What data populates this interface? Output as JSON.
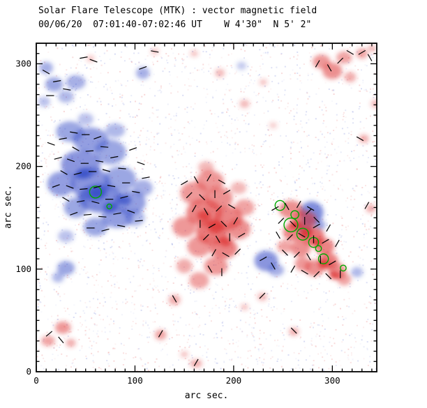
{
  "header": {
    "title_line1": "Solar Flare Telescope (MTK) : vector magnetic field",
    "title_line2": "00/06/20  07:01:40-07:02:46 UT    W 4'30\"  N 5' 2\""
  },
  "chart_data": {
    "type": "heatmap",
    "title": "Solar Flare Telescope (MTK) : vector magnetic field",
    "subtitle": "00/06/20  07:01:40-07:02:46 UT    W 4'30\"  N 5' 2\"",
    "xlabel": "arc sec.",
    "ylabel": "arc sec.",
    "xlim": [
      0,
      345
    ],
    "ylim": [
      0,
      320
    ],
    "xticks": [
      0,
      100,
      200,
      300
    ],
    "yticks": [
      0,
      100,
      200,
      300
    ],
    "minor_tick_step": 10,
    "grid": false,
    "legend": "none",
    "colors": {
      "positive": "#dd3333",
      "negative": "#3a50c8",
      "contour": "#00a800",
      "vector": "#000000",
      "axis": "#000000",
      "background": "#ffffff"
    },
    "polarity_legend": {
      "positive": "red",
      "negative": "blue"
    },
    "negative_blobs": [
      [
        34,
        234,
        14,
        10,
        0.5
      ],
      [
        55,
        226,
        18,
        12,
        0.55
      ],
      [
        75,
        214,
        16,
        12,
        0.5
      ],
      [
        45,
        202,
        20,
        14,
        0.6
      ],
      [
        25,
        183,
        14,
        12,
        0.55
      ],
      [
        55,
        183,
        20,
        16,
        0.6
      ],
      [
        85,
        188,
        16,
        12,
        0.5
      ],
      [
        65,
        169,
        22,
        14,
        0.65
      ],
      [
        95,
        165,
        16,
        12,
        0.55
      ],
      [
        82,
        150,
        16,
        10,
        0.55
      ],
      [
        60,
        141,
        12,
        9,
        0.5
      ],
      [
        108,
        179,
        10,
        8,
        0.45
      ],
      [
        40,
        160,
        12,
        10,
        0.5
      ],
      [
        30,
        132,
        8,
        6,
        0.35
      ],
      [
        100,
        150,
        10,
        8,
        0.4
      ],
      [
        50,
        246,
        8,
        6,
        0.35
      ],
      [
        80,
        235,
        10,
        7,
        0.4
      ],
      [
        62,
        174,
        8,
        6,
        0.85
      ],
      [
        48,
        193,
        7,
        5,
        0.8
      ],
      [
        75,
        160,
        7,
        5,
        0.8
      ],
      [
        90,
        167,
        6,
        5,
        0.75
      ],
      [
        10,
        296,
        7,
        6,
        0.45
      ],
      [
        18,
        280,
        9,
        7,
        0.5
      ],
      [
        40,
        282,
        10,
        7,
        0.45
      ],
      [
        30,
        268,
        8,
        6,
        0.4
      ],
      [
        8,
        263,
        6,
        5,
        0.35
      ],
      [
        108,
        291,
        7,
        6,
        0.45
      ],
      [
        30,
        101,
        9,
        7,
        0.5
      ],
      [
        22,
        92,
        6,
        5,
        0.4
      ],
      [
        233,
        108,
        12,
        10,
        0.6
      ],
      [
        243,
        99,
        8,
        6,
        0.45
      ],
      [
        279,
        155,
        12,
        11,
        0.65
      ],
      [
        272,
        141,
        8,
        7,
        0.55
      ],
      [
        287,
        143,
        6,
        5,
        0.5
      ],
      [
        325,
        97,
        6,
        5,
        0.4
      ],
      [
        208,
        298,
        5,
        4,
        0.3
      ]
    ],
    "positive_blobs": [
      [
        176,
        186,
        14,
        10,
        0.5
      ],
      [
        160,
        174,
        14,
        11,
        0.5
      ],
      [
        185,
        169,
        14,
        11,
        0.55
      ],
      [
        170,
        155,
        18,
        13,
        0.6
      ],
      [
        195,
        150,
        14,
        11,
        0.6
      ],
      [
        150,
        141,
        12,
        10,
        0.5
      ],
      [
        178,
        136,
        16,
        12,
        0.65
      ],
      [
        205,
        139,
        12,
        10,
        0.55
      ],
      [
        165,
        122,
        12,
        10,
        0.5
      ],
      [
        190,
        120,
        14,
        10,
        0.6
      ],
      [
        182,
        103,
        12,
        9,
        0.5
      ],
      [
        165,
        89,
        10,
        8,
        0.45
      ],
      [
        150,
        103,
        8,
        7,
        0.4
      ],
      [
        211,
        160,
        10,
        8,
        0.45
      ],
      [
        182,
        141,
        8,
        6,
        0.8
      ],
      [
        170,
        152,
        7,
        5,
        0.75
      ],
      [
        192,
        127,
        6,
        5,
        0.7
      ],
      [
        172,
        199,
        8,
        6,
        0.35
      ],
      [
        205,
        179,
        8,
        6,
        0.35
      ],
      [
        258,
        158,
        12,
        9,
        0.55
      ],
      [
        272,
        148,
        12,
        9,
        0.6
      ],
      [
        262,
        136,
        12,
        9,
        0.6
      ],
      [
        280,
        132,
        12,
        9,
        0.65
      ],
      [
        292,
        122,
        10,
        8,
        0.6
      ],
      [
        268,
        120,
        10,
        8,
        0.55
      ],
      [
        296,
        108,
        10,
        8,
        0.6
      ],
      [
        282,
        101,
        10,
        8,
        0.55
      ],
      [
        270,
        105,
        8,
        7,
        0.5
      ],
      [
        305,
        98,
        9,
        8,
        0.55
      ],
      [
        312,
        90,
        7,
        6,
        0.45
      ],
      [
        262,
        143,
        6,
        4,
        0.85
      ],
      [
        274,
        135,
        6,
        4,
        0.85
      ],
      [
        284,
        126,
        5,
        4,
        0.8
      ],
      [
        292,
        105,
        6,
        5,
        0.8
      ],
      [
        302,
        94,
        5,
        4,
        0.75
      ],
      [
        252,
        122,
        8,
        6,
        0.45
      ],
      [
        339,
        159,
        5,
        4,
        0.4
      ],
      [
        332,
        227,
        5,
        4,
        0.4
      ],
      [
        344,
        261,
        5,
        4,
        0.35
      ],
      [
        289,
        302,
        9,
        7,
        0.5
      ],
      [
        300,
        293,
        10,
        8,
        0.55
      ],
      [
        312,
        306,
        8,
        6,
        0.45
      ],
      [
        318,
        287,
        6,
        5,
        0.4
      ],
      [
        330,
        310,
        6,
        5,
        0.45
      ],
      [
        340,
        315,
        4,
        3,
        0.4
      ],
      [
        186,
        291,
        5,
        4,
        0.35
      ],
      [
        211,
        261,
        5,
        4,
        0.35
      ],
      [
        160,
        310,
        4,
        3,
        0.3
      ],
      [
        230,
        282,
        4,
        3,
        0.3
      ],
      [
        27,
        43,
        8,
        6,
        0.5
      ],
      [
        12,
        30,
        7,
        5,
        0.45
      ],
      [
        35,
        28,
        5,
        4,
        0.4
      ],
      [
        126,
        36,
        6,
        5,
        0.45
      ],
      [
        140,
        70,
        6,
        5,
        0.4
      ],
      [
        162,
        8,
        6,
        4,
        0.4
      ],
      [
        150,
        17,
        4,
        3,
        0.3
      ],
      [
        261,
        39,
        5,
        4,
        0.4
      ],
      [
        229,
        73,
        5,
        4,
        0.35
      ],
      [
        211,
        63,
        4,
        3,
        0.3
      ],
      [
        240,
        240,
        4,
        3,
        0.25
      ],
      [
        120,
        312,
        4,
        3,
        0.3
      ],
      [
        55,
        305,
        4,
        3,
        0.3
      ]
    ],
    "contours": [
      [
        60,
        175,
        6
      ],
      [
        74,
        161,
        2.5
      ],
      [
        247,
        162,
        5
      ],
      [
        258,
        143,
        7
      ],
      [
        270,
        134,
        6
      ],
      [
        281,
        126,
        5
      ],
      [
        262,
        153,
        4
      ],
      [
        291,
        110,
        5
      ],
      [
        311,
        101,
        3
      ],
      [
        286,
        120,
        3
      ]
    ],
    "vector_length_arcsec": 8,
    "vectors": [
      [
        15,
        222,
        160
      ],
      [
        27,
        227,
        10
      ],
      [
        38,
        233,
        170
      ],
      [
        50,
        231,
        0
      ],
      [
        62,
        228,
        20
      ],
      [
        40,
        217,
        150
      ],
      [
        54,
        215,
        5
      ],
      [
        69,
        219,
        175
      ],
      [
        22,
        208,
        15
      ],
      [
        35,
        206,
        160
      ],
      [
        49,
        203,
        0
      ],
      [
        64,
        205,
        170
      ],
      [
        79,
        209,
        10
      ],
      [
        28,
        194,
        150
      ],
      [
        42,
        193,
        15
      ],
      [
        57,
        195,
        0
      ],
      [
        71,
        196,
        165
      ],
      [
        87,
        198,
        175
      ],
      [
        20,
        181,
        20
      ],
      [
        34,
        180,
        160
      ],
      [
        48,
        178,
        5
      ],
      [
        62,
        180,
        15
      ],
      [
        76,
        181,
        170
      ],
      [
        91,
        184,
        0
      ],
      [
        30,
        168,
        150
      ],
      [
        45,
        166,
        10
      ],
      [
        60,
        165,
        165
      ],
      [
        74,
        168,
        0
      ],
      [
        89,
        170,
        15
      ],
      [
        101,
        175,
        170
      ],
      [
        38,
        154,
        20
      ],
      [
        52,
        153,
        5
      ],
      [
        67,
        151,
        175
      ],
      [
        82,
        154,
        10
      ],
      [
        96,
        156,
        160
      ],
      [
        55,
        140,
        0
      ],
      [
        70,
        138,
        15
      ],
      [
        86,
        142,
        170
      ],
      [
        104,
        147,
        5
      ],
      [
        98,
        217,
        20
      ],
      [
        106,
        203,
        160
      ],
      [
        111,
        189,
        10
      ],
      [
        10,
        292,
        150
      ],
      [
        21,
        283,
        10
      ],
      [
        31,
        275,
        170
      ],
      [
        14,
        269,
        0
      ],
      [
        48,
        306,
        10
      ],
      [
        58,
        303,
        160
      ],
      [
        108,
        296,
        20
      ],
      [
        120,
        312,
        170
      ],
      [
        150,
        184,
        30
      ],
      [
        162,
        187,
        120
      ],
      [
        175,
        189,
        60
      ],
      [
        188,
        185,
        150
      ],
      [
        155,
        172,
        45
      ],
      [
        168,
        170,
        135
      ],
      [
        181,
        173,
        90
      ],
      [
        193,
        175,
        30
      ],
      [
        160,
        159,
        60
      ],
      [
        172,
        156,
        120
      ],
      [
        185,
        159,
        45
      ],
      [
        198,
        161,
        150
      ],
      [
        166,
        144,
        90
      ],
      [
        178,
        142,
        30
      ],
      [
        190,
        144,
        135
      ],
      [
        202,
        147,
        60
      ],
      [
        172,
        131,
        45
      ],
      [
        184,
        129,
        120
      ],
      [
        196,
        131,
        90
      ],
      [
        208,
        133,
        30
      ],
      [
        180,
        116,
        60
      ],
      [
        192,
        114,
        150
      ],
      [
        204,
        117,
        45
      ],
      [
        176,
        100,
        120
      ],
      [
        188,
        97,
        90
      ],
      [
        242,
        159,
        30
      ],
      [
        254,
        161,
        120
      ],
      [
        266,
        163,
        60
      ],
      [
        278,
        159,
        150
      ],
      [
        248,
        147,
        45
      ],
      [
        260,
        144,
        135
      ],
      [
        272,
        147,
        90
      ],
      [
        284,
        142,
        30
      ],
      [
        296,
        140,
        60
      ],
      [
        245,
        133,
        120
      ],
      [
        257,
        131,
        45
      ],
      [
        269,
        133,
        150
      ],
      [
        281,
        129,
        90
      ],
      [
        293,
        127,
        30
      ],
      [
        305,
        125,
        60
      ],
      [
        252,
        116,
        135
      ],
      [
        264,
        114,
        45
      ],
      [
        276,
        112,
        120
      ],
      [
        288,
        109,
        90
      ],
      [
        300,
        106,
        30
      ],
      [
        260,
        100,
        60
      ],
      [
        272,
        97,
        150
      ],
      [
        284,
        95,
        45
      ],
      [
        296,
        93,
        135
      ],
      [
        308,
        95,
        90
      ],
      [
        285,
        300,
        60
      ],
      [
        297,
        296,
        120
      ],
      [
        308,
        303,
        45
      ],
      [
        318,
        311,
        150
      ],
      [
        330,
        311,
        30
      ],
      [
        338,
        306,
        120
      ],
      [
        328,
        227,
        150
      ],
      [
        335,
        162,
        60
      ],
      [
        13,
        37,
        40
      ],
      [
        25,
        31,
        130
      ],
      [
        126,
        37,
        60
      ],
      [
        140,
        71,
        120
      ],
      [
        229,
        74,
        45
      ],
      [
        261,
        40,
        135
      ],
      [
        162,
        9,
        60
      ],
      [
        230,
        110,
        30
      ],
      [
        240,
        103,
        120
      ],
      [
        276,
        156,
        45
      ],
      [
        284,
        148,
        135
      ]
    ]
  }
}
